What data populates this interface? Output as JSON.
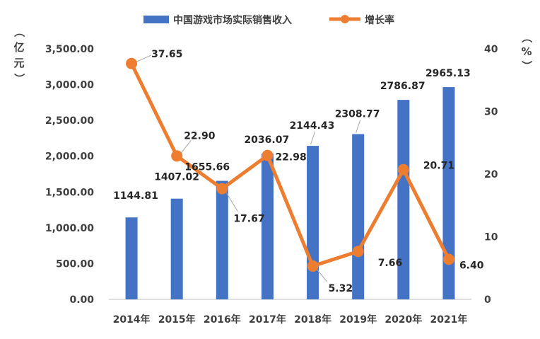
{
  "chart_data": {
    "type": "bar",
    "categories": [
      "2014年",
      "2015年",
      "2016年",
      "2017年",
      "2018年",
      "2019年",
      "2020年",
      "2021年"
    ],
    "series": [
      {
        "name": "中国游戏市场实际销售收入",
        "type": "bar",
        "axis": "left",
        "color": "#4472C4",
        "values": [
          1144.81,
          1407.02,
          1655.66,
          2036.07,
          2144.43,
          2308.77,
          2786.87,
          2965.13
        ],
        "labels": [
          "1144.81",
          "1407.02",
          "1655.66",
          "2036.07",
          "2144.43",
          "2308.77",
          "2786.87",
          "2965.13"
        ]
      },
      {
        "name": "增长率",
        "type": "line",
        "axis": "right",
        "color": "#ED7D31",
        "values": [
          37.65,
          22.9,
          17.67,
          22.98,
          5.32,
          7.66,
          20.71,
          6.4
        ],
        "labels": [
          "37.65",
          "22.90",
          "17.67",
          "22.98",
          "5.32",
          "7.66",
          "20.71",
          "6.40"
        ]
      }
    ],
    "y_left": {
      "unit_label": "（亿元）",
      "ylim": [
        0,
        3500
      ],
      "ticks": [
        "0.00",
        "500.00",
        "1,000.00",
        "1,500.00",
        "2,000.00",
        "2,500.00",
        "3,000.00",
        "3,500.00"
      ],
      "tick_values": [
        0,
        500,
        1000,
        1500,
        2000,
        2500,
        3000,
        3500
      ]
    },
    "y_right": {
      "unit_label": "（%）",
      "ylim": [
        0,
        40
      ],
      "ticks": [
        "0",
        "10",
        "20",
        "30",
        "40"
      ],
      "tick_values": [
        0,
        10,
        20,
        30,
        40
      ]
    },
    "legend_position": "top",
    "grid": false,
    "title": "",
    "xlabel": ""
  }
}
